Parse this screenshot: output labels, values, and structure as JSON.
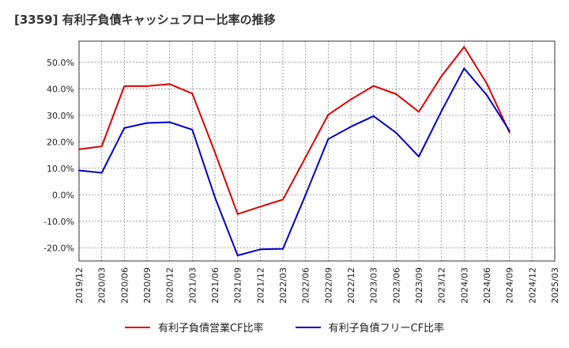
{
  "title": "[3359]  有利子負債キャッシュフロー比率の推移",
  "chart_data": {
    "type": "line",
    "x": [
      "2019/12",
      "2020/03",
      "2020/06",
      "2020/09",
      "2020/12",
      "2021/03",
      "2021/06",
      "2021/09",
      "2021/12",
      "2022/03",
      "2022/06",
      "2022/09",
      "2022/12",
      "2023/03",
      "2023/06",
      "2023/09",
      "2023/12",
      "2024/03",
      "2024/06",
      "2024/09",
      "2024/12",
      "2025/03"
    ],
    "ylim": [
      -25,
      58
    ],
    "yticks": [
      -20,
      -10,
      0,
      10,
      20,
      30,
      40,
      50
    ],
    "ytick_labels": [
      "-20.0%",
      "-10.0%",
      "0.0%",
      "10.0%",
      "20.0%",
      "30.0%",
      "40.0%",
      "50.0%"
    ],
    "grid": true,
    "legend_position": "bottom",
    "series": [
      {
        "name": "有利子負債営業CF比率",
        "color": "#dd0000",
        "values": [
          17.2,
          18.3,
          41.0,
          41.0,
          41.8,
          38.2,
          16.0,
          -7.3,
          -4.5,
          -1.8,
          14.2,
          30.2,
          36.0,
          41.1,
          38.0,
          31.3,
          44.8,
          55.8,
          42.0,
          23.5,
          null,
          null
        ]
      },
      {
        "name": "有利子負債フリーCF比率",
        "color": "#0000cc",
        "values": [
          9.2,
          8.3,
          25.2,
          27.1,
          27.4,
          24.6,
          -1.0,
          -22.9,
          -20.6,
          -20.4,
          0.0,
          21.0,
          25.7,
          29.7,
          23.4,
          14.4,
          31.6,
          47.7,
          37.6,
          24.1,
          null,
          null
        ]
      }
    ]
  }
}
